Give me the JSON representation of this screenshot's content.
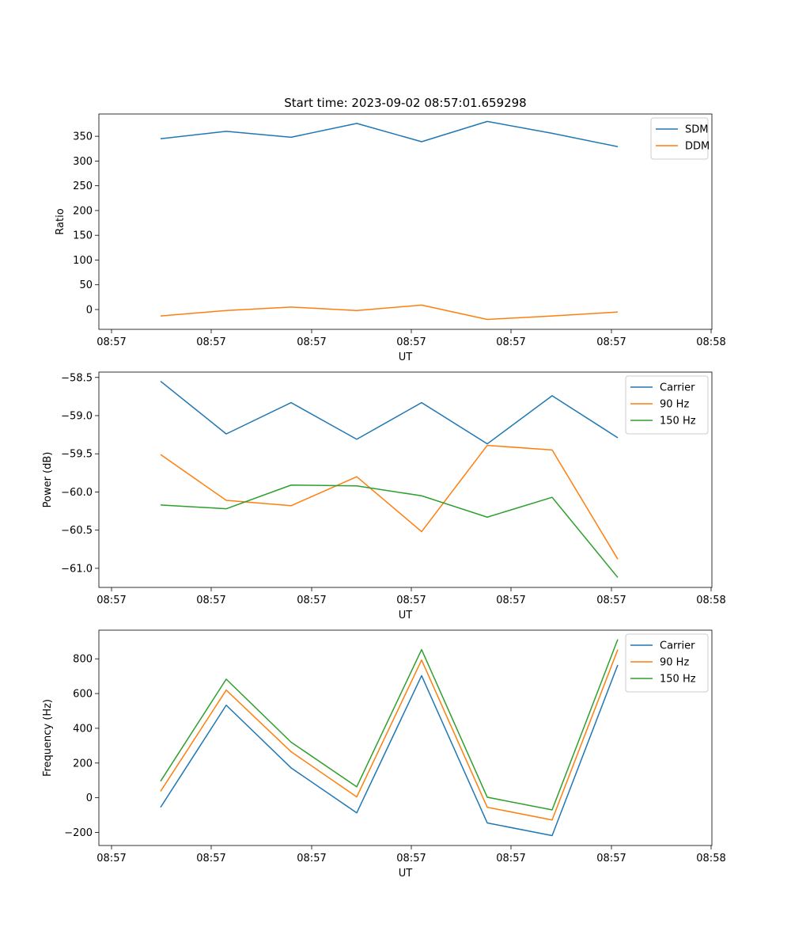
{
  "title": "Start time: 2023-09-02 08:57:01.659298",
  "chart_data": [
    {
      "type": "line",
      "ylabel": "Ratio",
      "xlabel": "UT",
      "x_tick_labels": [
        "08:57",
        "08:57",
        "08:57",
        "08:57",
        "08:57",
        "08:57",
        "08:58"
      ],
      "ylim": [
        -40,
        395
      ],
      "yticks": [
        0,
        50,
        100,
        150,
        200,
        250,
        300,
        350
      ],
      "legend_position": "upper-right",
      "series": [
        {
          "name": "SDM",
          "color": "#1f77b4",
          "values": [
            345,
            360,
            348,
            376,
            339,
            380,
            356,
            329
          ]
        },
        {
          "name": "DDM",
          "color": "#ff7f0e",
          "values": [
            -13,
            -2,
            5,
            -2,
            9,
            -20,
            -13,
            -5
          ]
        }
      ]
    },
    {
      "type": "line",
      "ylabel": "Power (dB)",
      "xlabel": "UT",
      "x_tick_labels": [
        "08:57",
        "08:57",
        "08:57",
        "08:57",
        "08:57",
        "08:57",
        "08:58"
      ],
      "ylim": [
        -61.25,
        -58.43
      ],
      "yticks": [
        -61.0,
        -60.5,
        -60.0,
        -59.5,
        -59.0,
        -58.5
      ],
      "legend_position": "upper-right",
      "series": [
        {
          "name": "Carrier",
          "color": "#1f77b4",
          "values": [
            -58.55,
            -59.24,
            -58.83,
            -59.31,
            -58.83,
            -59.37,
            -58.74,
            -59.29
          ]
        },
        {
          "name": "90 Hz",
          "color": "#ff7f0e",
          "values": [
            -59.51,
            -60.11,
            -60.18,
            -59.8,
            -60.52,
            -59.39,
            -59.45,
            -60.88
          ]
        },
        {
          "name": "150 Hz",
          "color": "#2ca02c",
          "values": [
            -60.17,
            -60.22,
            -59.91,
            -59.92,
            -60.05,
            -60.33,
            -60.07,
            -61.12
          ]
        }
      ]
    },
    {
      "type": "line",
      "ylabel": "Frequency (Hz)",
      "xlabel": "UT",
      "x_tick_labels": [
        "08:57",
        "08:57",
        "08:57",
        "08:57",
        "08:57",
        "08:57",
        "08:58"
      ],
      "ylim": [
        -275,
        965
      ],
      "yticks": [
        -200,
        0,
        200,
        400,
        600,
        800
      ],
      "legend_position": "upper-right",
      "series": [
        {
          "name": "Carrier",
          "color": "#1f77b4",
          "values": [
            -55,
            533,
            172,
            -87,
            703,
            -145,
            -218,
            765
          ]
        },
        {
          "name": "90 Hz",
          "color": "#ff7f0e",
          "values": [
            37,
            620,
            265,
            5,
            793,
            -55,
            -128,
            853
          ]
        },
        {
          "name": "150 Hz",
          "color": "#2ca02c",
          "values": [
            95,
            683,
            320,
            63,
            853,
            3,
            -70,
            912
          ]
        }
      ]
    }
  ]
}
